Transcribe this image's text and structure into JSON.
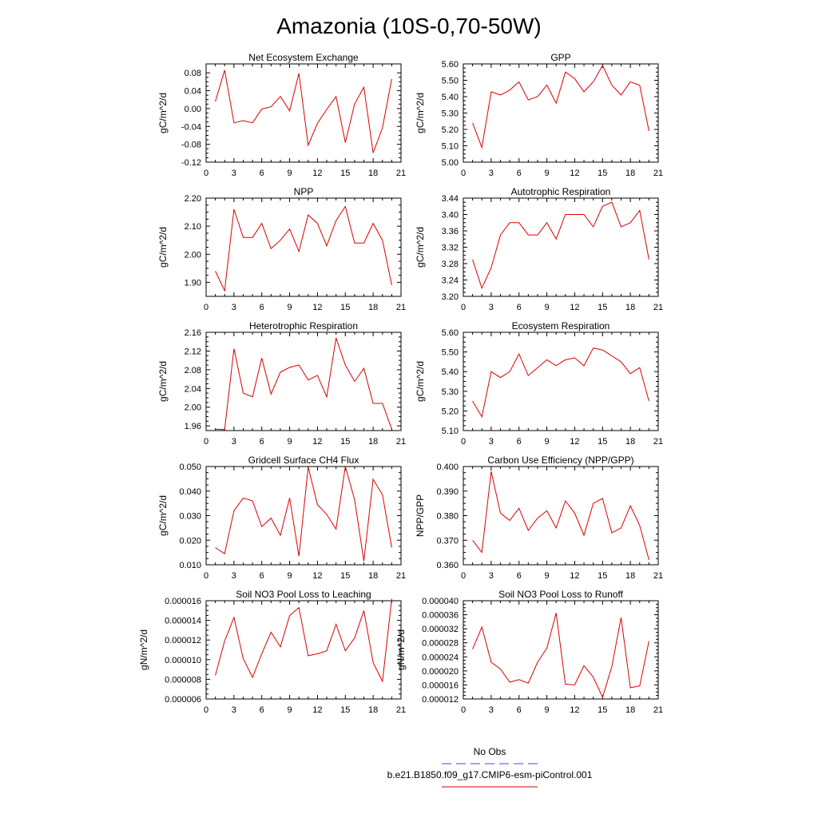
{
  "page": {
    "title": "Amazonia (10S-0,70-50W)"
  },
  "legend": {
    "items": [
      {
        "label": "No Obs",
        "color": "#4444dd",
        "dash": true
      },
      {
        "label": "b.e21.B1850.f09_g17.CMIP6-esm-piControl.001",
        "color": "#dd0000",
        "dash": false
      }
    ]
  },
  "chart_data": [
    {
      "type": "line",
      "title": "Net Ecosystem Exchange",
      "ylabel": "gC/m^2/d",
      "xlim": [
        0,
        21
      ],
      "xticks": [
        "0",
        "3",
        "6",
        "9",
        "12",
        "15",
        "18",
        "21"
      ],
      "ylim": [
        -0.12,
        0.1
      ],
      "yticks": [
        "-0.12",
        "-0.08",
        "-0.04",
        "0.00",
        "0.04",
        "0.08"
      ],
      "series": [
        {
          "color": "#dd0000",
          "x": [
            1,
            2,
            3,
            4,
            5,
            6,
            7,
            8,
            9,
            10,
            11,
            12,
            13,
            14,
            15,
            16,
            17,
            18,
            19,
            20
          ],
          "y": [
            0.016,
            0.086,
            -0.032,
            -0.027,
            -0.032,
            -0.001,
            0.004,
            0.027,
            -0.005,
            0.079,
            -0.082,
            -0.033,
            -0.002,
            0.027,
            -0.076,
            0.01,
            0.048,
            -0.099,
            -0.043,
            0.066
          ]
        }
      ]
    },
    {
      "type": "line",
      "title": "GPP",
      "ylabel": "gC/m^2/d",
      "xlim": [
        0,
        21
      ],
      "xticks": [
        "0",
        "3",
        "6",
        "9",
        "12",
        "15",
        "18",
        "21"
      ],
      "ylim": [
        5.0,
        5.6
      ],
      "yticks": [
        "5.00",
        "5.10",
        "5.20",
        "5.30",
        "5.40",
        "5.50",
        "5.60"
      ],
      "series": [
        {
          "color": "#dd0000",
          "x": [
            1,
            2,
            3,
            4,
            5,
            6,
            7,
            8,
            9,
            10,
            11,
            12,
            13,
            14,
            15,
            16,
            17,
            18,
            19,
            20
          ],
          "y": [
            5.24,
            5.09,
            5.43,
            5.41,
            5.44,
            5.49,
            5.38,
            5.4,
            5.47,
            5.36,
            5.55,
            5.51,
            5.43,
            5.49,
            5.59,
            5.47,
            5.41,
            5.49,
            5.47,
            5.19
          ]
        }
      ]
    },
    {
      "type": "line",
      "title": "NPP",
      "ylabel": "gC/m^2/d",
      "xlim": [
        0,
        21
      ],
      "xticks": [
        "0",
        "3",
        "6",
        "9",
        "12",
        "15",
        "18",
        "21"
      ],
      "ylim": [
        1.85,
        2.2
      ],
      "yticks": [
        "1.90",
        "2.00",
        "2.10",
        "2.20"
      ],
      "series": [
        {
          "color": "#dd0000",
          "x": [
            1,
            2,
            3,
            4,
            5,
            6,
            7,
            8,
            9,
            10,
            11,
            12,
            13,
            14,
            15,
            16,
            17,
            18,
            19,
            20
          ],
          "y": [
            1.94,
            1.87,
            2.16,
            2.06,
            2.06,
            2.11,
            2.02,
            2.05,
            2.09,
            2.01,
            2.14,
            2.11,
            2.03,
            2.12,
            2.17,
            2.04,
            2.04,
            2.11,
            2.05,
            1.89
          ]
        }
      ]
    },
    {
      "type": "line",
      "title": "Autotrophic Respiration",
      "ylabel": "gC/m^2/d",
      "xlim": [
        0,
        21
      ],
      "xticks": [
        "0",
        "3",
        "6",
        "9",
        "12",
        "15",
        "18",
        "21"
      ],
      "ylim": [
        3.2,
        3.44
      ],
      "yticks": [
        "3.20",
        "3.24",
        "3.28",
        "3.32",
        "3.36",
        "3.40",
        "3.44"
      ],
      "series": [
        {
          "color": "#dd0000",
          "x": [
            1,
            2,
            3,
            4,
            5,
            6,
            7,
            8,
            9,
            10,
            11,
            12,
            13,
            14,
            15,
            16,
            17,
            18,
            19,
            20
          ],
          "y": [
            3.29,
            3.22,
            3.27,
            3.35,
            3.38,
            3.38,
            3.35,
            3.35,
            3.38,
            3.34,
            3.4,
            3.4,
            3.4,
            3.37,
            3.42,
            3.43,
            3.37,
            3.38,
            3.41,
            3.29
          ]
        }
      ]
    },
    {
      "type": "line",
      "title": "Heterotrophic Respiration",
      "ylabel": "gC/m^2/d",
      "xlim": [
        0,
        21
      ],
      "xticks": [
        "0",
        "3",
        "6",
        "9",
        "12",
        "15",
        "18",
        "21"
      ],
      "ylim": [
        1.95,
        2.16
      ],
      "yticks": [
        "1.96",
        "2.00",
        "2.04",
        "2.08",
        "2.12",
        "2.16"
      ],
      "series": [
        {
          "color": "#dd0000",
          "x": [
            1,
            2,
            3,
            4,
            5,
            6,
            7,
            8,
            9,
            10,
            11,
            12,
            13,
            14,
            15,
            16,
            17,
            18,
            19,
            20
          ],
          "y": [
            1.953,
            1.952,
            2.125,
            2.03,
            2.022,
            2.105,
            2.028,
            2.075,
            2.085,
            2.09,
            2.058,
            2.068,
            2.022,
            2.148,
            2.09,
            2.055,
            2.083,
            2.008,
            2.008,
            1.953
          ]
        }
      ]
    },
    {
      "type": "line",
      "title": "Ecosystem Respiration",
      "ylabel": "gC/m^2/d",
      "xlim": [
        0,
        21
      ],
      "xticks": [
        "0",
        "3",
        "6",
        "9",
        "12",
        "15",
        "18",
        "21"
      ],
      "ylim": [
        5.1,
        5.6
      ],
      "yticks": [
        "5.10",
        "5.20",
        "5.30",
        "5.40",
        "5.50",
        "5.60"
      ],
      "series": [
        {
          "color": "#dd0000",
          "x": [
            1,
            2,
            3,
            4,
            5,
            6,
            7,
            8,
            9,
            10,
            11,
            12,
            13,
            14,
            15,
            16,
            17,
            18,
            19,
            20
          ],
          "y": [
            5.25,
            5.17,
            5.4,
            5.37,
            5.4,
            5.49,
            5.38,
            5.42,
            5.46,
            5.43,
            5.46,
            5.47,
            5.43,
            5.52,
            5.51,
            5.48,
            5.45,
            5.39,
            5.42,
            5.25
          ]
        }
      ]
    },
    {
      "type": "line",
      "title": "Gridcell Surface CH4 Flux",
      "ylabel": "gC/m^2/d",
      "xlim": [
        0,
        21
      ],
      "xticks": [
        "0",
        "3",
        "6",
        "9",
        "12",
        "15",
        "18",
        "21"
      ],
      "ylim": [
        0.01,
        0.05
      ],
      "yticks": [
        "0.010",
        "0.020",
        "0.030",
        "0.040",
        "0.050"
      ],
      "series": [
        {
          "color": "#dd0000",
          "x": [
            1,
            2,
            3,
            4,
            5,
            6,
            7,
            8,
            9,
            10,
            11,
            12,
            13,
            14,
            15,
            16,
            17,
            18,
            19,
            20
          ],
          "y": [
            0.017,
            0.0145,
            0.032,
            0.0372,
            0.036,
            0.0255,
            0.029,
            0.022,
            0.0372,
            0.0135,
            0.0498,
            0.0345,
            0.0305,
            0.0245,
            0.05,
            0.0365,
            0.0115,
            0.0448,
            0.0385,
            0.017
          ]
        }
      ]
    },
    {
      "type": "line",
      "title": "Carbon Use Efficiency (NPP/GPP)",
      "ylabel": "NPP/GPP",
      "xlim": [
        0,
        21
      ],
      "xticks": [
        "0",
        "3",
        "6",
        "9",
        "12",
        "15",
        "18",
        "21"
      ],
      "ylim": [
        0.36,
        0.4
      ],
      "yticks": [
        "0.360",
        "0.370",
        "0.380",
        "0.390",
        "0.400"
      ],
      "series": [
        {
          "color": "#dd0000",
          "x": [
            1,
            2,
            3,
            4,
            5,
            6,
            7,
            8,
            9,
            10,
            11,
            12,
            13,
            14,
            15,
            16,
            17,
            18,
            19,
            20
          ],
          "y": [
            0.37,
            0.365,
            0.398,
            0.381,
            0.378,
            0.383,
            0.374,
            0.379,
            0.382,
            0.375,
            0.386,
            0.381,
            0.372,
            0.385,
            0.387,
            0.373,
            0.375,
            0.384,
            0.376,
            0.362
          ]
        }
      ]
    },
    {
      "type": "line",
      "title": "Soil NO3 Pool Loss to Leaching",
      "ylabel": "gN/m^2/d",
      "xlim": [
        0,
        21
      ],
      "xticks": [
        "0",
        "3",
        "6",
        "9",
        "12",
        "15",
        "18",
        "21"
      ],
      "ylim": [
        6e-06,
        1.6e-05
      ],
      "yticks": [
        "0.000006",
        "0.000008",
        "0.000010",
        "0.000012",
        "0.000014",
        "0.000016"
      ],
      "series": [
        {
          "color": "#dd0000",
          "x": [
            1,
            2,
            3,
            4,
            5,
            6,
            7,
            8,
            9,
            10,
            11,
            12,
            13,
            14,
            15,
            16,
            17,
            18,
            19,
            20
          ],
          "y": [
            8.4e-06,
            1.19e-05,
            1.43e-05,
            1.01e-05,
            8.2e-06,
            1.06e-05,
            1.28e-05,
            1.13e-05,
            1.45e-05,
            1.53e-05,
            1.04e-05,
            1.06e-05,
            1.09e-05,
            1.36e-05,
            1.09e-05,
            1.22e-05,
            1.5e-05,
            9.7e-06,
            7.8e-06,
            1.62e-05
          ]
        }
      ]
    },
    {
      "type": "line",
      "title": "Soil NO3 Pool Loss to Runoff",
      "ylabel": "gN/m^2/d",
      "xlim": [
        0,
        21
      ],
      "xticks": [
        "0",
        "3",
        "6",
        "9",
        "12",
        "15",
        "18",
        "21"
      ],
      "ylim": [
        1.2e-05,
        4e-05
      ],
      "yticks": [
        "0.000012",
        "0.000016",
        "0.000020",
        "0.000024",
        "0.000028",
        "0.000032",
        "0.000036",
        "0.000040"
      ],
      "series": [
        {
          "color": "#dd0000",
          "x": [
            1,
            2,
            3,
            4,
            5,
            6,
            7,
            8,
            9,
            10,
            11,
            12,
            13,
            14,
            15,
            16,
            17,
            18,
            19,
            20
          ],
          "y": [
            2.62e-05,
            3.25e-05,
            2.25e-05,
            2.05e-05,
            1.68e-05,
            1.75e-05,
            1.65e-05,
            2.25e-05,
            2.65e-05,
            3.65e-05,
            1.62e-05,
            1.6e-05,
            2.15e-05,
            1.82e-05,
            1.25e-05,
            2.12e-05,
            3.52e-05,
            1.52e-05,
            1.57e-05,
            2.85e-05
          ]
        }
      ]
    }
  ]
}
